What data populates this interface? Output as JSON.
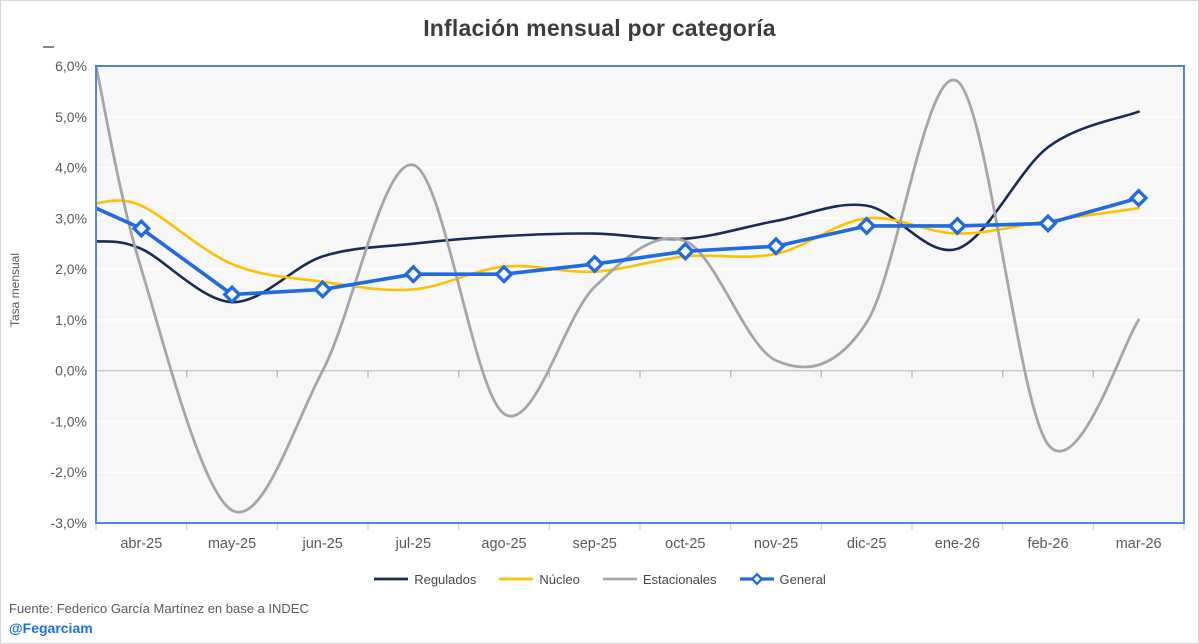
{
  "title": "Inflación mensual por categoría",
  "footer": {
    "source": "Fuente: Federico García Martínez en base a INDEC",
    "handle": "@Fegarciam"
  },
  "colors": {
    "plot_bg": "#f7f7f7",
    "plot_border": "#4d84dc",
    "gridline": "#ffffff",
    "zero_axis_line": "#c8c8c8",
    "tick_mark": "#b3b3b3",
    "bottom_tick_mark": "#d0d0d0",
    "axis_text": "#595959",
    "title_text": "#3d3d3d",
    "legend_text": "#474747",
    "handle_blue": "#1a6fe8"
  },
  "chart_data": {
    "type": "line",
    "title": "Inflación mensual por categoría",
    "xlabel": "",
    "ylabel": "Tasa mensual",
    "ylim": [
      -3.0,
      6.0
    ],
    "grid": true,
    "legend_position": "bottom",
    "y_tick_values": [
      6,
      5,
      4,
      3,
      2,
      1,
      0,
      -1,
      -2,
      -3
    ],
    "y_tick_labels": [
      "6,0%",
      "5,0%",
      "4,0%",
      "3,0%",
      "2,0%",
      "1,0%",
      "0,0%",
      "-1,0%",
      "-2,0%",
      "-3,0%"
    ],
    "categories": [
      "abr-25",
      "may-25",
      "jun-25",
      "jul-25",
      "ago-25",
      "sep-25",
      "oct-25",
      "nov-25",
      "dic-25",
      "ene-26",
      "feb-26",
      "mar-26"
    ],
    "series": [
      {
        "name": "Regulados",
        "color": "#1a2c55",
        "style": "smooth",
        "line_width": 2.6,
        "edge_value": 2.55,
        "values": [
          2.4,
          1.35,
          2.25,
          2.5,
          2.65,
          2.7,
          2.6,
          2.95,
          3.25,
          2.4,
          4.4,
          5.1
        ]
      },
      {
        "name": "Núcleo",
        "color": "#ffc000",
        "style": "smooth",
        "line_width": 2.6,
        "edge_value": 3.3,
        "values": [
          3.25,
          2.1,
          1.75,
          1.6,
          2.05,
          1.95,
          2.25,
          2.3,
          3.0,
          2.7,
          2.95,
          3.2
        ]
      },
      {
        "name": "Estacionales",
        "color": "#a6a6a6",
        "style": "smooth",
        "line_width": 2.8,
        "edge_value": 6.0,
        "values": [
          2.0,
          -2.75,
          0.0,
          4.05,
          -0.85,
          1.65,
          2.55,
          0.2,
          0.95,
          5.7,
          -1.45,
          1.0
        ]
      },
      {
        "name": "General",
        "color": "#1f6bdf",
        "style": "straight",
        "marker": "diamond",
        "line_width": 3.6,
        "edge_value": 3.2,
        "values": [
          2.8,
          1.5,
          1.6,
          1.9,
          1.9,
          2.1,
          2.35,
          2.45,
          2.85,
          2.85,
          2.9,
          3.4
        ]
      }
    ]
  }
}
